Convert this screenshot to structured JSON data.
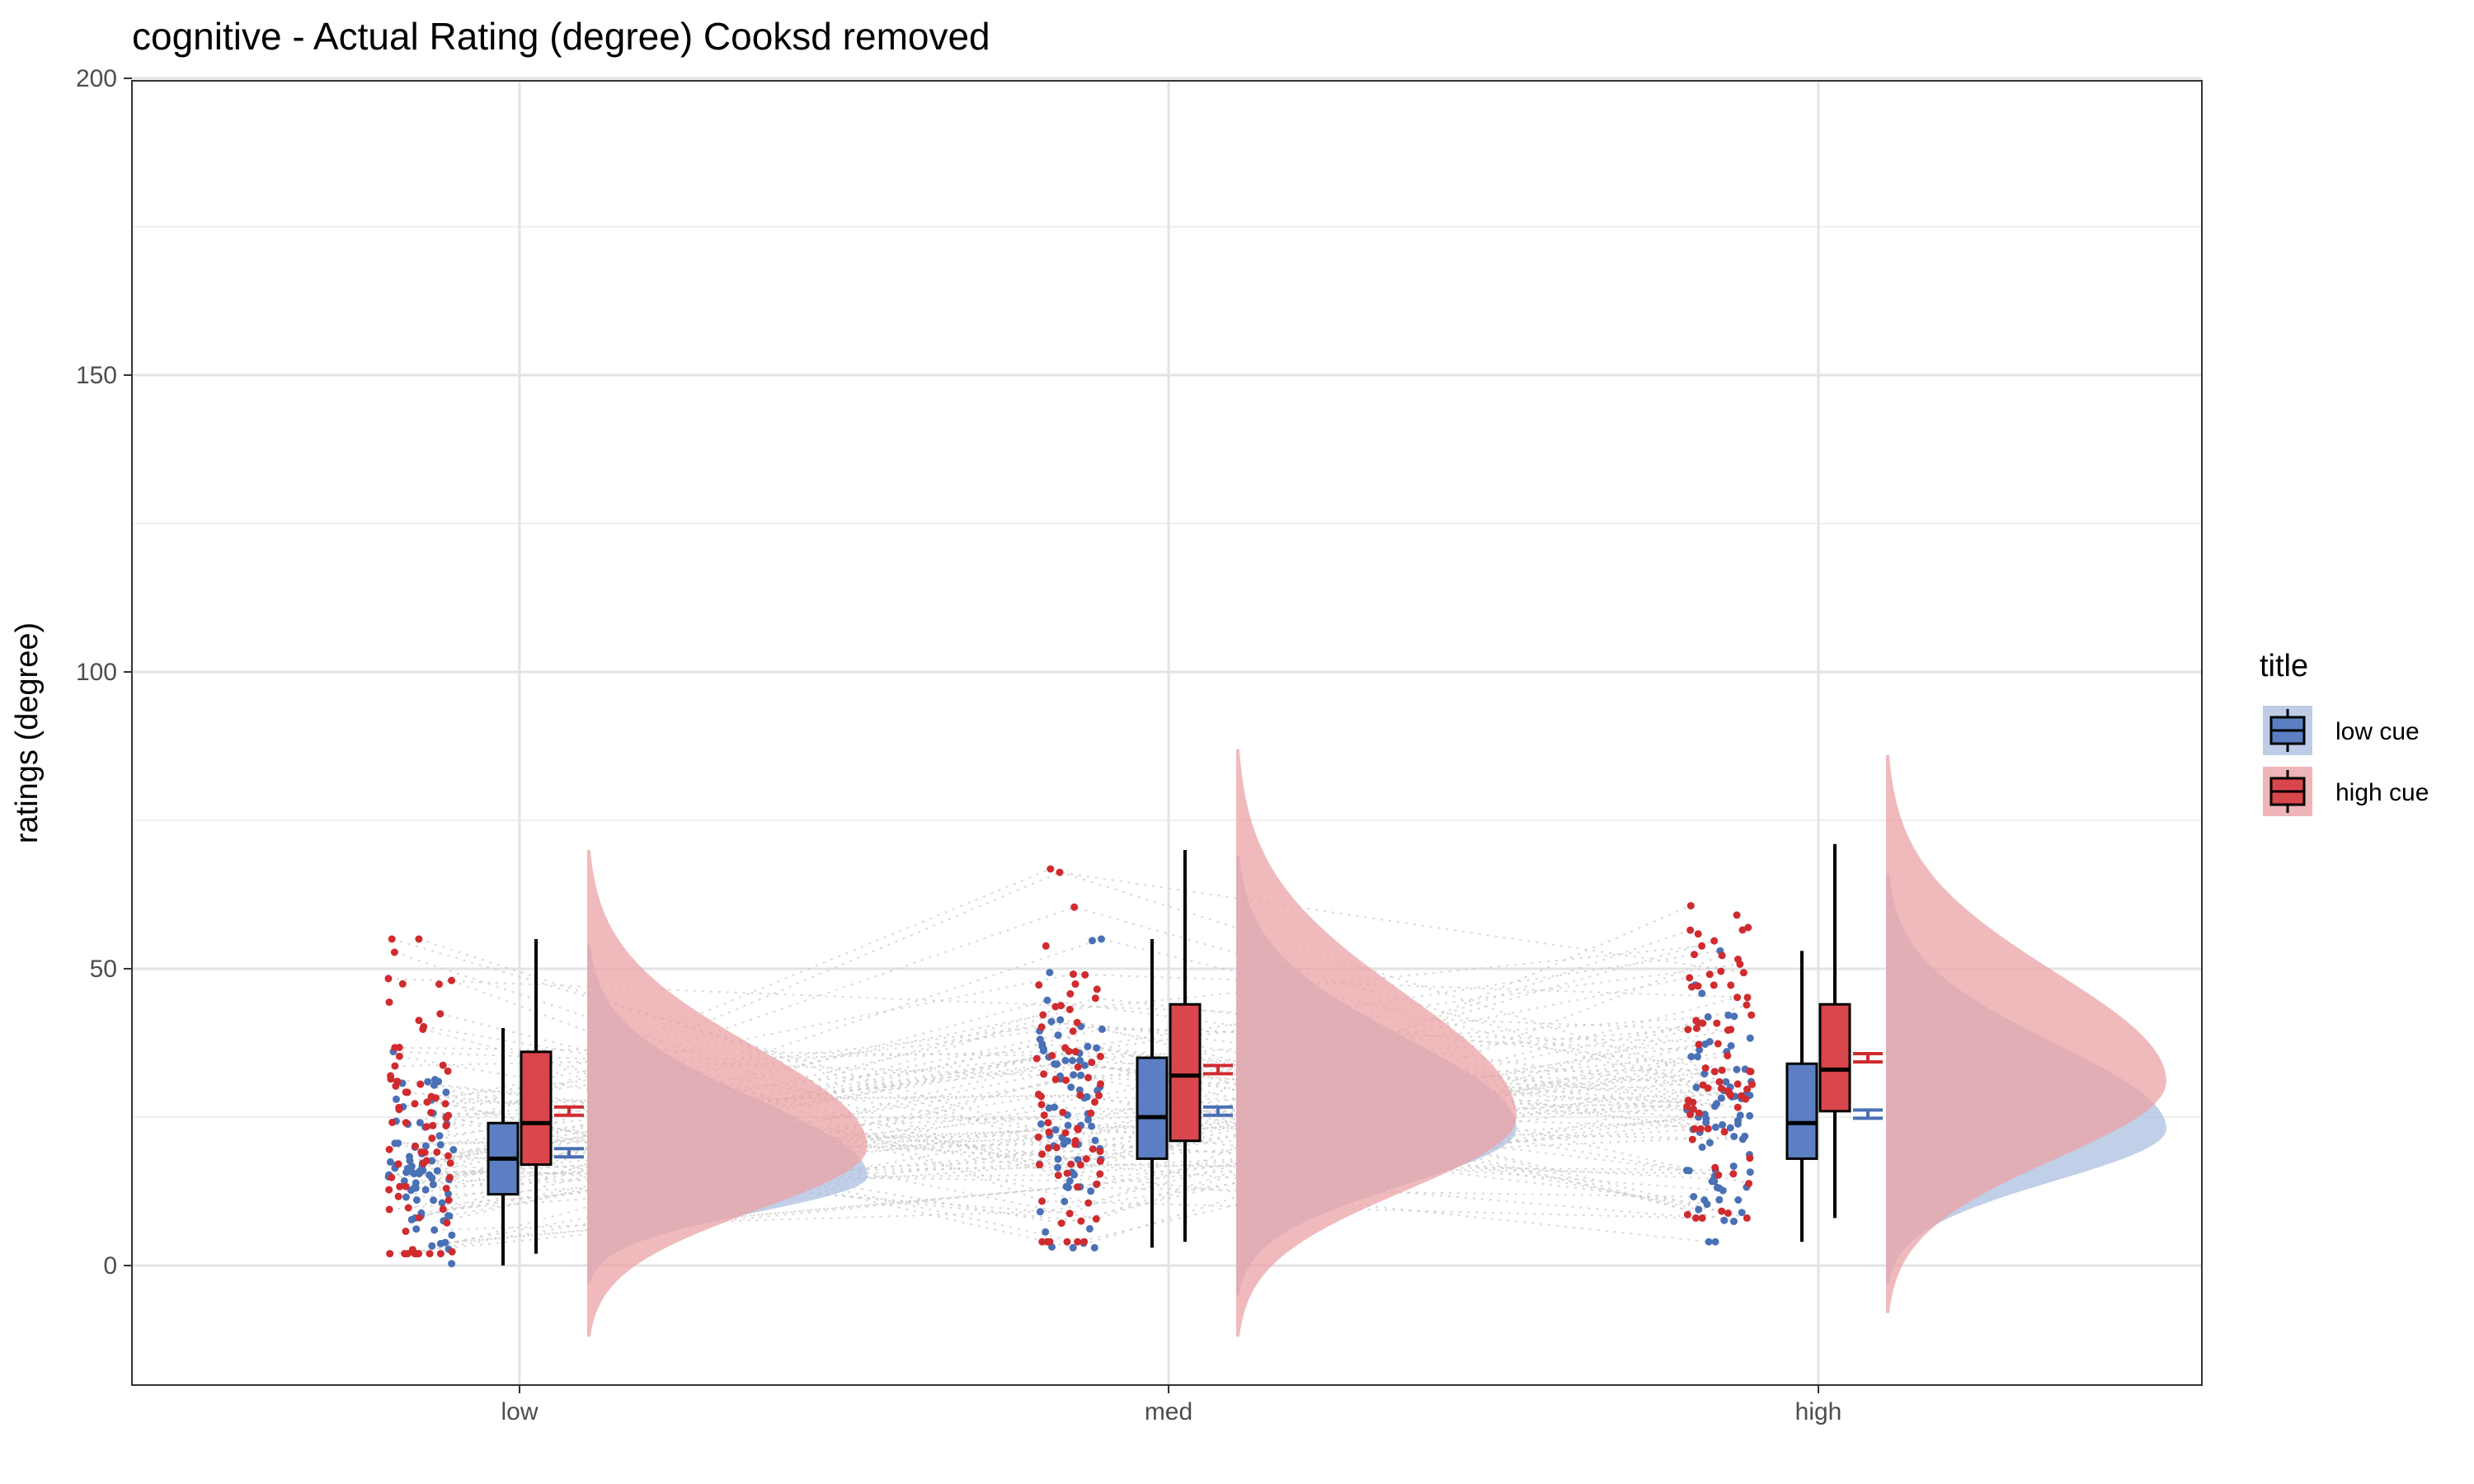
{
  "chart_data": {
    "type": "raincloud",
    "title": "cognitive  - Actual Rating (degree) Cooksd removed",
    "xlabel": "",
    "ylabel": "ratings (degree)",
    "ylim": [
      -20,
      200
    ],
    "yticks": [
      0,
      50,
      100,
      150,
      200
    ],
    "categories": [
      "low",
      "med",
      "high"
    ],
    "grid": true,
    "legend": {
      "title": "title",
      "position": "right",
      "entries": [
        "low cue",
        "high cue"
      ]
    },
    "series": [
      {
        "name": "low cue",
        "color": "#4a70b5",
        "fill": "#5b7fc2",
        "density_fill": "#aebfe0",
        "box": [
          {
            "category": "low",
            "whisker_low": 0,
            "q1": 12,
            "median": 18,
            "q3": 24,
            "whisker_high": 40,
            "mean": 19
          },
          {
            "category": "med",
            "whisker_low": 3,
            "q1": 18,
            "median": 25,
            "q3": 35,
            "whisker_high": 55,
            "mean": 26
          },
          {
            "category": "high",
            "whisker_low": 4,
            "q1": 18,
            "median": 24,
            "q3": 34,
            "whisker_high": 53,
            "mean": 25.5
          }
        ],
        "density": [
          {
            "category": "low",
            "min": -3,
            "max": 54,
            "peak": 15
          },
          {
            "category": "med",
            "min": -5,
            "max": 69,
            "peak": 23
          },
          {
            "category": "high",
            "min": -3,
            "max": 66,
            "peak": 23
          }
        ]
      },
      {
        "name": "high cue",
        "color": "#d02b2f",
        "fill": "#d9464b",
        "density_fill": "#eba3a6",
        "box": [
          {
            "category": "low",
            "whisker_low": 2,
            "q1": 17,
            "median": 24,
            "q3": 36,
            "whisker_high": 55,
            "mean": 26
          },
          {
            "category": "med",
            "whisker_low": 4,
            "q1": 21,
            "median": 32,
            "q3": 44,
            "whisker_high": 70,
            "mean": 33
          },
          {
            "category": "high",
            "whisker_low": 8,
            "q1": 26,
            "median": 33,
            "q3": 44,
            "whisker_high": 71,
            "mean": 35
          }
        ],
        "density": [
          {
            "category": "low",
            "min": -12,
            "max": 70,
            "peak": 20
          },
          {
            "category": "med",
            "min": -12,
            "max": 87,
            "peak": 25
          },
          {
            "category": "high",
            "min": -8,
            "max": 86,
            "peak": 31
          }
        ]
      }
    ]
  }
}
